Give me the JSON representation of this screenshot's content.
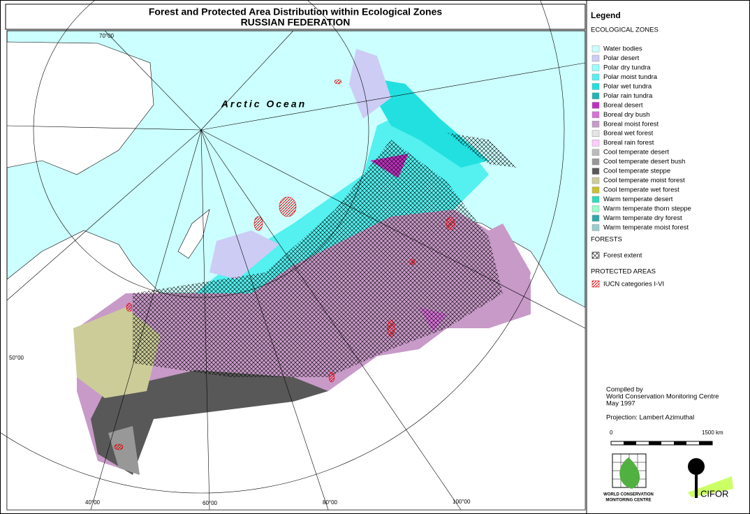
{
  "header": {
    "title": "Forest and Protected Area Distribution within Ecological Zones",
    "subtitle": "RUSSIAN FEDERATION"
  },
  "map": {
    "ocean_label": "Arctic Ocean",
    "graticule_labels": [
      "70°00",
      "50°00",
      "40°00",
      "60°00",
      "80°00",
      "100°00"
    ]
  },
  "legend": {
    "title": "Legend",
    "zones_heading": "ECOLOGICAL ZONES",
    "zones": [
      {
        "name": "Water bodies",
        "color": "#ccffff"
      },
      {
        "name": "Polar desert",
        "color": "#ccccf5"
      },
      {
        "name": "Polar dry tundra",
        "color": "#99ffff"
      },
      {
        "name": "Polar moist tundra",
        "color": "#55f0f0"
      },
      {
        "name": "Polar wet tundra",
        "color": "#22e0e0"
      },
      {
        "name": "Polar rain tundra",
        "color": "#22b4b4"
      },
      {
        "name": "Boreal desert",
        "color": "#c030c0"
      },
      {
        "name": "Boreal dry bush",
        "color": "#d870d8"
      },
      {
        "name": "Boreal moist forest",
        "color": "#c89ac8"
      },
      {
        "name": "Boreal wet forest",
        "color": "#e4e4e4"
      },
      {
        "name": "Boreal rain forest",
        "color": "#ffccff"
      },
      {
        "name": "Cool temperate desert",
        "color": "#bcbcbc"
      },
      {
        "name": "Cool temperate desert bush",
        "color": "#989898"
      },
      {
        "name": "Cool temperate steppe",
        "color": "#585858"
      },
      {
        "name": "Cool temperate moist forest",
        "color": "#cccc99"
      },
      {
        "name": "Cool temperate wet forest",
        "color": "#c8c030"
      },
      {
        "name": "Warm temperate desert",
        "color": "#30dcbc"
      },
      {
        "name": "Warm temperate thorn steppe",
        "color": "#99ffcc"
      },
      {
        "name": "Warm temperate dry forest",
        "color": "#30a8a8"
      },
      {
        "name": "Warm temperate moist forest",
        "color": "#99cccc"
      }
    ],
    "forests_heading": "FORESTS",
    "forest_item": "Forest extent",
    "protected_heading": "PROTECTED AREAS",
    "protected_item": "IUCN categories I-VI"
  },
  "credits": {
    "compiled_lines": [
      "Compiled by",
      "World Conservation Monitoring Centre",
      "May 1997"
    ],
    "projection": "Projection: Lambert Azimuthal",
    "scale_labels": [
      "0",
      "1500 km"
    ],
    "logo_lines": [
      "WORLD CONSERVATION",
      "MONITORING CENTRE"
    ],
    "cifor": "CIFOR"
  }
}
